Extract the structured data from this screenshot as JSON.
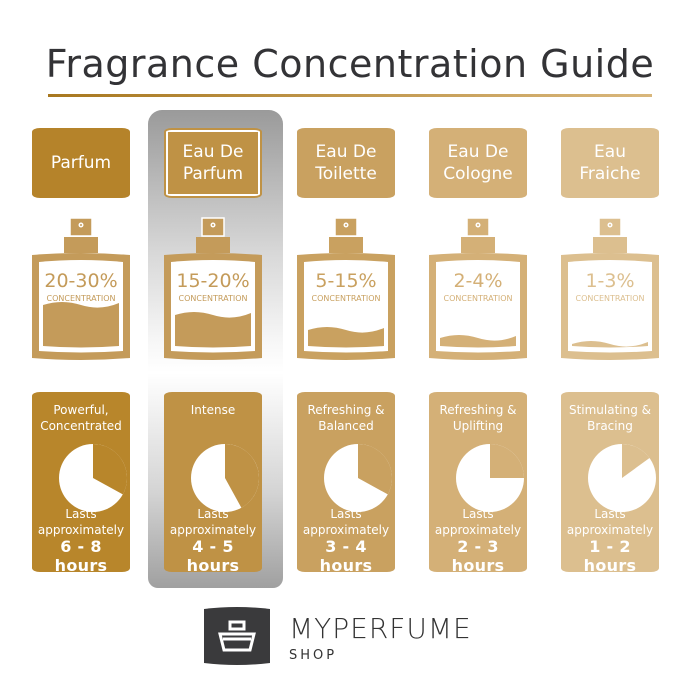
{
  "title": "Fragrance Concentration Guide",
  "concentration_label": "CONCENTRATION",
  "lasts_label": "Lasts approximately",
  "columns": [
    {
      "name": "Parfum",
      "concentration": "20-30%",
      "description": "Powerful, Concentrated",
      "duration": "6 - 8 hours",
      "remaining_fraction": 0.67,
      "fill_level": 0.45,
      "header_color": "#b5832a",
      "bottle_color": "#c49b5a",
      "box_color": "#b8862b",
      "highlighted": false
    },
    {
      "name": "Eau De Parfum",
      "concentration": "15-20%",
      "description": "Intense",
      "duration": "4 - 5 hours",
      "remaining_fraction": 0.58,
      "fill_level": 0.35,
      "header_color": "#bf9245",
      "bottle_color": "#c49b5a",
      "box_color": "#bf9245",
      "highlighted": true
    },
    {
      "name": "Eau De Toilette",
      "concentration": "5-15%",
      "description": "Refreshing & Balanced",
      "duration": "3 - 4 hours",
      "remaining_fraction": 0.67,
      "fill_level": 0.2,
      "header_color": "#c9a160",
      "bottle_color": "#c9a160",
      "box_color": "#c9a160",
      "highlighted": false
    },
    {
      "name": "Eau De Cologne",
      "concentration": "2-4%",
      "description": "Refreshing & Uplifting",
      "duration": "2 - 3 hours",
      "remaining_fraction": 0.75,
      "fill_level": 0.12,
      "header_color": "#d4b077",
      "bottle_color": "#d4b077",
      "box_color": "#d4b077",
      "highlighted": false
    },
    {
      "name": "Eau Fraiche",
      "concentration": "1-3%",
      "description": "Stimulating & Bracing",
      "duration": "1 - 2 hours",
      "remaining_fraction": 0.85,
      "fill_level": 0.06,
      "header_color": "#dcbf8f",
      "bottle_color": "#dcbf8f",
      "box_color": "#dcbf8f",
      "highlighted": false
    }
  ],
  "brand": {
    "name": "MYPERFUME",
    "sub": "SHOP",
    "logo_color": "#3a3a3c"
  }
}
